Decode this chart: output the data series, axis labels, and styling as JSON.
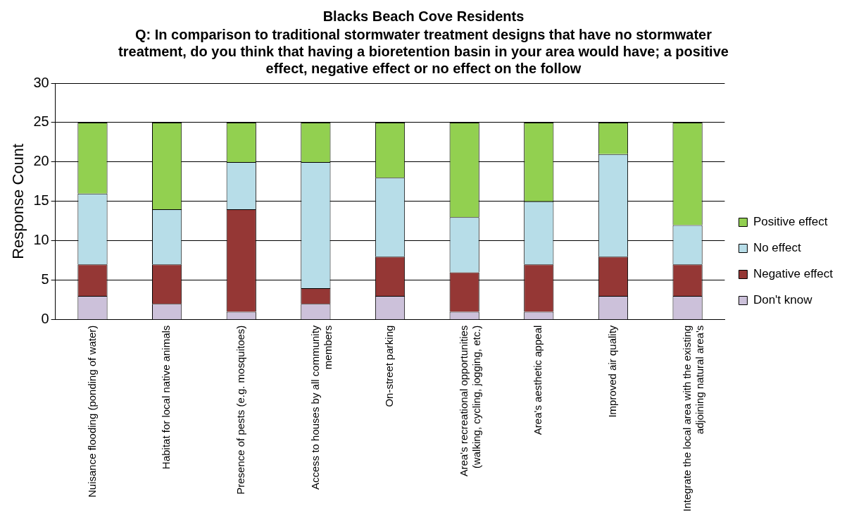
{
  "chart_data": {
    "type": "bar",
    "stacked": true,
    "title": "Blacks Beach Cove Residents",
    "subtitle": "Q: In comparison to traditional stormwater treatment designs that have no stormwater treatment, do you think that having a bioretention basin in your area would have; a positive effect, negative effect or no effect on the follow",
    "ylabel": "Response Count",
    "categories": [
      "Nuisance flooding (ponding of water)",
      "Habitat for local native animals",
      "Presence of pests (e.g. mosquitoes)",
      "Access to houses by all community members",
      "On-street parking",
      "Area's recreational opportunities (walking, cycling, jogging, etc.)",
      "Area's aesthetic appeal",
      "Improved air quality",
      "Integrate the local area with the existing adjoining natural area's"
    ],
    "series": [
      {
        "name": "Don't know",
        "color": "#ccc1da",
        "values": [
          3,
          2,
          1,
          2,
          3,
          1,
          1,
          3,
          3
        ]
      },
      {
        "name": "Negative effect",
        "color": "#953735",
        "values": [
          4,
          5,
          13,
          2,
          5,
          5,
          6,
          5,
          4
        ]
      },
      {
        "name": "No effect",
        "color": "#b7dde8",
        "values": [
          9,
          7,
          6,
          16,
          10,
          7,
          8,
          13,
          5
        ]
      },
      {
        "name": "Positive effect",
        "color": "#92d050",
        "values": [
          9,
          11,
          5,
          5,
          7,
          12,
          10,
          4,
          13
        ]
      }
    ],
    "ylim": [
      0,
      30
    ],
    "yticks": [
      0,
      5,
      10,
      15,
      20,
      25,
      30
    ],
    "grid": "y",
    "legend": "right"
  }
}
